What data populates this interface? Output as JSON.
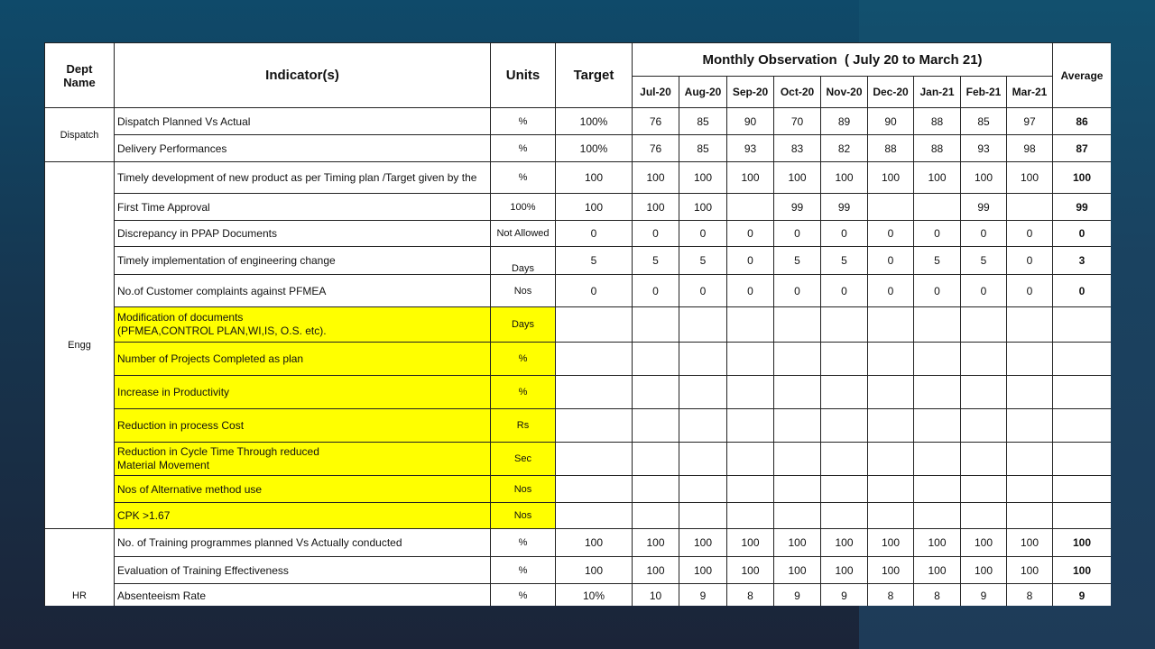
{
  "header": {
    "dept": "Dept Name",
    "indicator": "Indicator(s)",
    "units": "Units",
    "target": "Target",
    "monthly": "Monthly Observation  ( July 20 to March 21)",
    "average": "Average",
    "months": [
      "Jul-20",
      "Aug-20",
      "Sep-20",
      "Oct-20",
      "Nov-20",
      "Dec-20",
      "Jan-21",
      "Feb-21",
      "Mar-21"
    ]
  },
  "groups": [
    {
      "dept": "Dispatch",
      "rows": [
        {
          "indicator": "Dispatch Planned Vs Actual",
          "units": "%",
          "target": "100%",
          "values": [
            "76",
            "85",
            "90",
            "70",
            "89",
            "90",
            "88",
            "85",
            "97"
          ],
          "average": "86"
        },
        {
          "indicator": "Delivery Performances",
          "units": "%",
          "target": "100%",
          "values": [
            "76",
            "85",
            "93",
            "83",
            "82",
            "88",
            "88",
            "93",
            "98"
          ],
          "average": "87"
        }
      ]
    },
    {
      "dept": "Engg",
      "rows": [
        {
          "indicator": "Timely development of new product as per Timing plan /Target given by the",
          "units": "%",
          "target": "100",
          "values": [
            "100",
            "100",
            "100",
            "100",
            "100",
            "100",
            "100",
            "100",
            "100"
          ],
          "average": "100"
        },
        {
          "indicator": "First Time Approval",
          "units": "100%",
          "target": "100",
          "values": [
            "100",
            "100",
            "",
            "99",
            "99",
            "",
            "",
            "99",
            ""
          ],
          "average": "99"
        },
        {
          "indicator": "Discrepancy in PPAP Documents",
          "units": "Not Allowed",
          "target": "0",
          "values": [
            "0",
            "0",
            "0",
            "0",
            "0",
            "0",
            "0",
            "0",
            "0"
          ],
          "average": "0"
        },
        {
          "indicator": "Timely implementation of engineering change",
          "units": "Days",
          "target": "5",
          "values": [
            "5",
            "5",
            "0",
            "5",
            "5",
            "0",
            "5",
            "5",
            "0"
          ],
          "average": "3"
        },
        {
          "indicator": "No.of Customer complaints against PFMEA",
          "units": "Nos",
          "target": "0",
          "values": [
            "0",
            "0",
            "0",
            "0",
            "0",
            "0",
            "0",
            "0",
            "0"
          ],
          "average": "0"
        },
        {
          "indicator": "Modification of documents (PFMEA,CONTROL PLAN,WI,IS, O.S. etc).",
          "units": "Days",
          "target": "",
          "values": [
            "",
            "",
            "",
            "",
            "",
            "",
            "",
            "",
            ""
          ],
          "average": "",
          "highlight": true
        },
        {
          "indicator": "Number of Projects Completed as plan",
          "units": "%",
          "target": "",
          "values": [
            "",
            "",
            "",
            "",
            "",
            "",
            "",
            "",
            ""
          ],
          "average": "",
          "highlight": true
        },
        {
          "indicator": "Increase in Productivity",
          "units": "%",
          "target": "",
          "values": [
            "",
            "",
            "",
            "",
            "",
            "",
            "",
            "",
            ""
          ],
          "average": "",
          "highlight": true
        },
        {
          "indicator": "Reduction in process Cost",
          "units": "Rs",
          "target": "",
          "values": [
            "",
            "",
            "",
            "",
            "",
            "",
            "",
            "",
            ""
          ],
          "average": "",
          "highlight": true
        },
        {
          "indicator": "Reduction in Cycle Time Through reduced Material Movement",
          "units": "Sec",
          "target": "",
          "values": [
            "",
            "",
            "",
            "",
            "",
            "",
            "",
            "",
            ""
          ],
          "average": "",
          "highlight": true
        },
        {
          "indicator": "Nos of Alternative method use",
          "units": "Nos",
          "target": "",
          "values": [
            "",
            "",
            "",
            "",
            "",
            "",
            "",
            "",
            ""
          ],
          "average": "",
          "highlight": true
        },
        {
          "indicator": "CPK >1.67",
          "units": "Nos",
          "target": "",
          "values": [
            "",
            "",
            "",
            "",
            "",
            "",
            "",
            "",
            ""
          ],
          "average": "",
          "highlight": true
        }
      ]
    },
    {
      "dept": "HR",
      "rows": [
        {
          "indicator": "No. of Training programmes planned Vs Actually conducted",
          "units": "%",
          "target": "100",
          "values": [
            "100",
            "100",
            "100",
            "100",
            "100",
            "100",
            "100",
            "100",
            "100"
          ],
          "average": "100"
        },
        {
          "indicator": "Evaluation of Training Effectiveness",
          "units": "%",
          "target": "100",
          "values": [
            "100",
            "100",
            "100",
            "100",
            "100",
            "100",
            "100",
            "100",
            "100"
          ],
          "average": "100"
        },
        {
          "indicator": "Absenteeism Rate",
          "units": "%",
          "target": "10%",
          "values": [
            "10",
            "9",
            "8",
            "9",
            "9",
            "8",
            "8",
            "9",
            "8"
          ],
          "average": "9"
        }
      ]
    }
  ],
  "colors": {
    "highlight": "#ffff00",
    "background": "#163650"
  }
}
